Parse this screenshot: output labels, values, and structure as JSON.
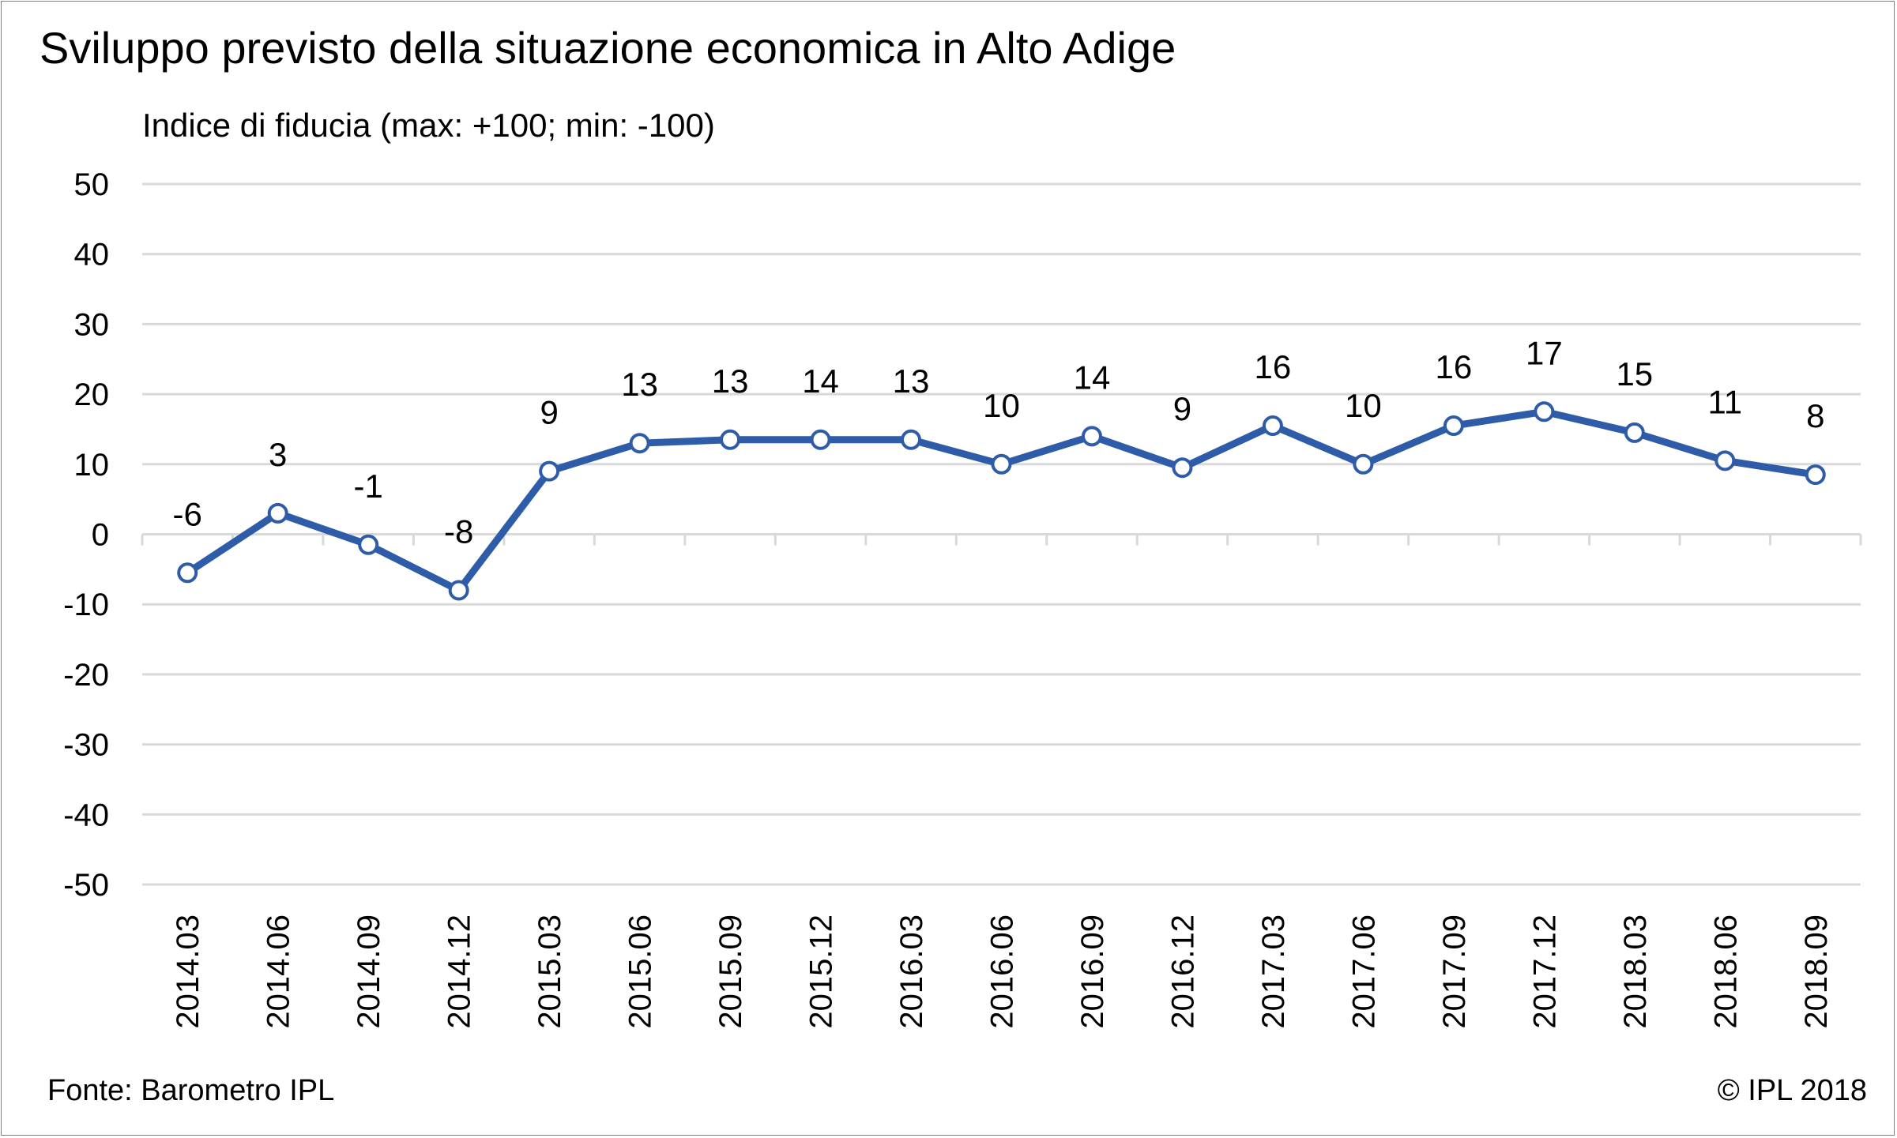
{
  "title": "Sviluppo previsto della situazione economica in Alto Adige",
  "source": "Fonte: Barometro IPL",
  "copyright": "© IPL 2018",
  "colors": {
    "line": "#2e5ca8",
    "grid": "#d9d9d9",
    "marker_fill": "#ffffff"
  },
  "chart_data": {
    "type": "line",
    "title": "Sviluppo previsto della situazione economica in Alto Adige",
    "ylabel": "Indice di fiducia (max: +100; min: -100)",
    "xlabel": "",
    "ylim": [
      -50,
      50
    ],
    "yticks": [
      50,
      40,
      30,
      20,
      10,
      0,
      -10,
      -20,
      -30,
      -40,
      -50
    ],
    "grid": true,
    "legend": "none",
    "categories": [
      "2014.03",
      "2014.06",
      "2014.09",
      "2014.12",
      "2015.03",
      "2015.06",
      "2015.09",
      "2015.12",
      "2016.03",
      "2016.06",
      "2016.09",
      "2016.12",
      "2017.03",
      "2017.06",
      "2017.09",
      "2017.12",
      "2018.03",
      "2018.06",
      "2018.09"
    ],
    "values": [
      -5.5,
      3,
      -1.5,
      -8,
      9,
      13,
      13.5,
      13.5,
      13.5,
      10,
      14,
      9.5,
      15.5,
      10,
      15.5,
      17.5,
      14.5,
      10.5,
      8.5
    ],
    "data_labels": [
      "-6",
      "3",
      "-1",
      "-8",
      "9",
      "13",
      "13",
      "14",
      "13",
      "10",
      "14",
      "9",
      "16",
      "10",
      "16",
      "17",
      "15",
      "11",
      "8"
    ]
  }
}
